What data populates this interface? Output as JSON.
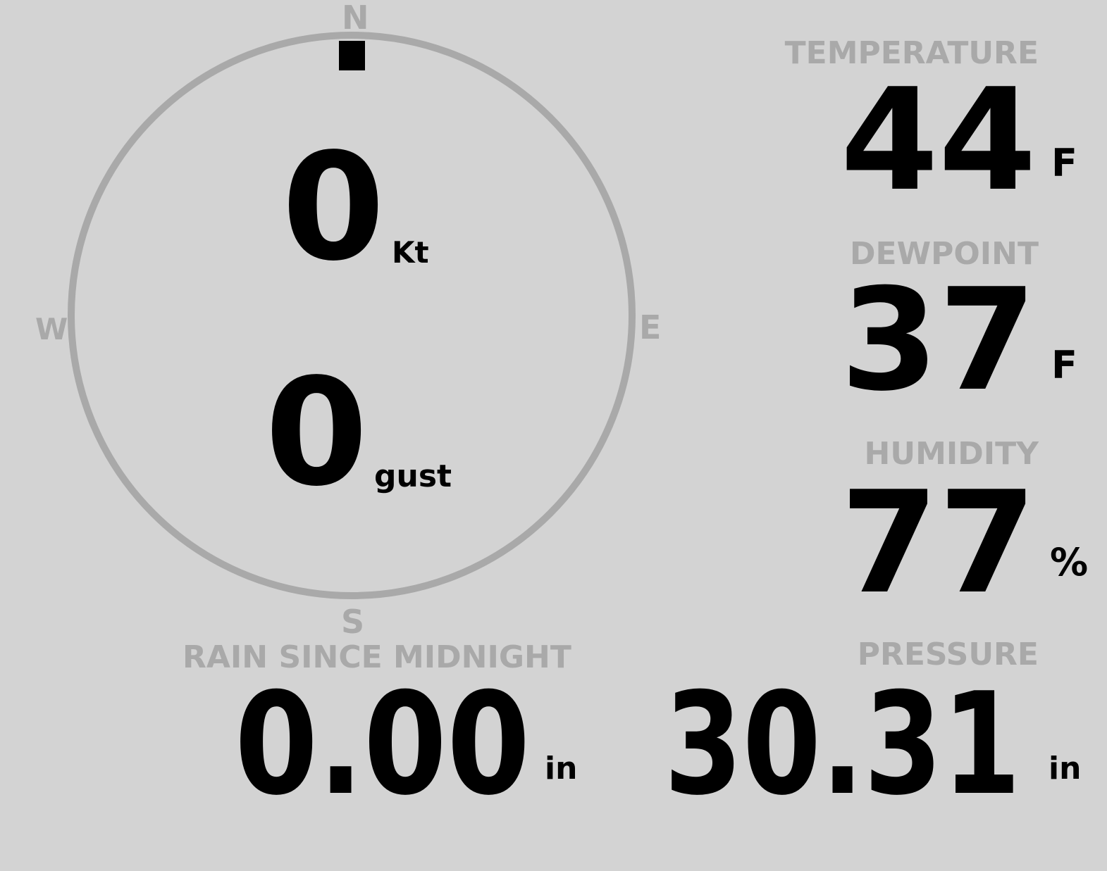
{
  "compass": {
    "n": "N",
    "s": "S",
    "e": "E",
    "w": "W",
    "ring_color": "#a9a9a9",
    "direction_deg": 0
  },
  "wind": {
    "speed": "0",
    "speed_unit": "Kt",
    "gust": "0",
    "gust_unit": "gust"
  },
  "temperature": {
    "label": "TEMPERATURE",
    "value": "44",
    "unit": "F"
  },
  "dewpoint": {
    "label": "DEWPOINT",
    "value": "37",
    "unit": "F"
  },
  "humidity": {
    "label": "HUMIDITY",
    "value": "77",
    "unit": "%"
  },
  "rain": {
    "label": "RAIN SINCE MIDNIGHT",
    "value": "0.00",
    "unit": "in"
  },
  "pressure": {
    "label": "PRESSURE",
    "value": "30.31",
    "unit": "in"
  }
}
